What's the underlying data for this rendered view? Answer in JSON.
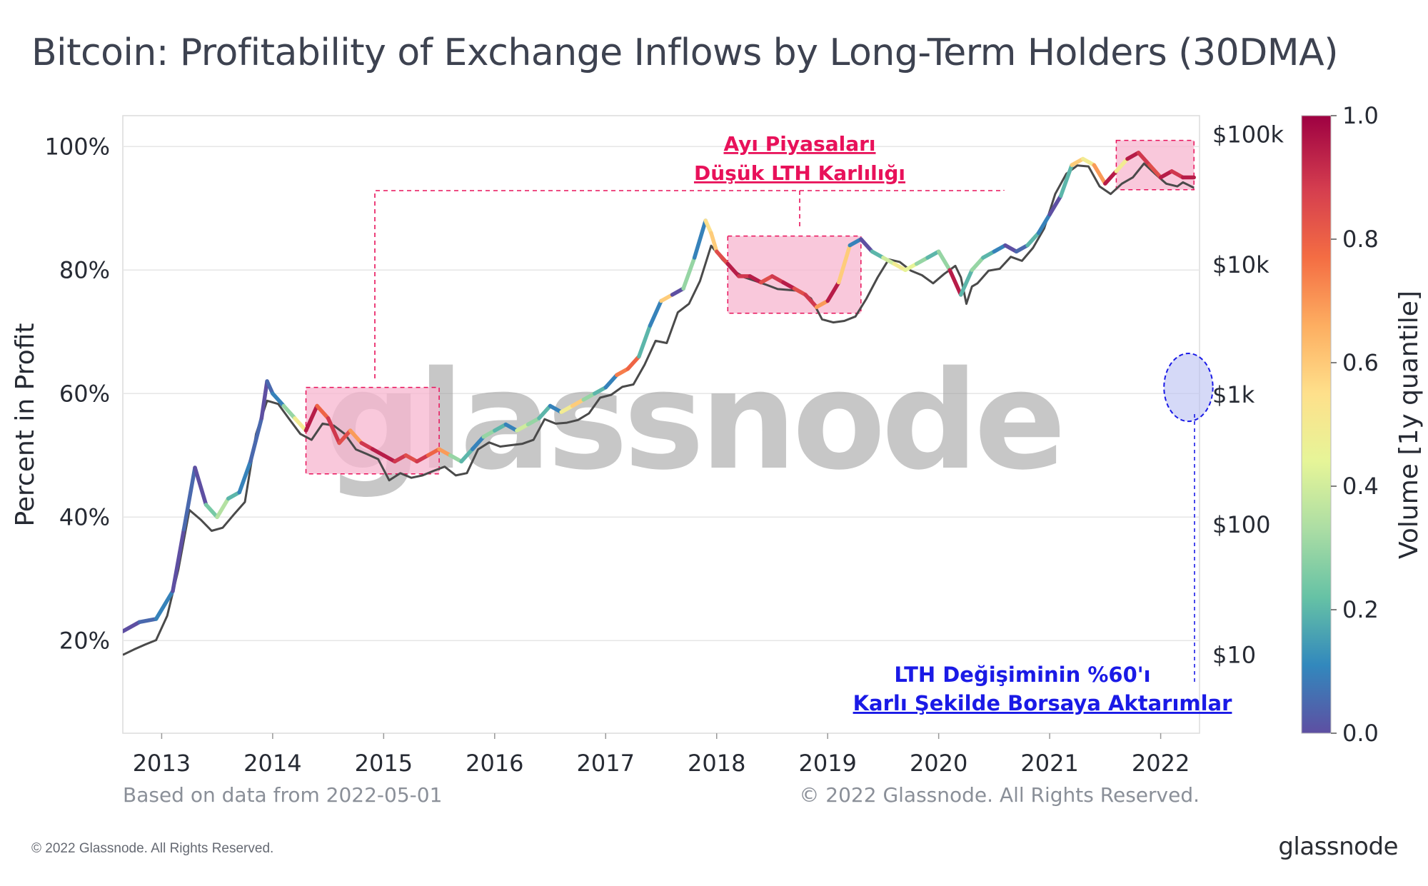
{
  "title": "Bitcoin: Profitability of Exchange Inflows by Long-Term Holders (30DMA)",
  "footer": {
    "based_on": "Based on data from 2022-05-01",
    "copyright_inner": "© 2022 Glassnode. All Rights Reserved.",
    "copyright_page": "© 2022 Glassnode. All Rights Reserved.",
    "brand": "glassnode"
  },
  "watermark": "glassnode",
  "annotations": {
    "bear_line1": "Ayı Piyasaları",
    "bear_line2": "Düşük LTH Karlılığı",
    "lth_line1": "LTH Değişiminin %60'ı",
    "lth_line2": "Karlı Şekilde Borsaya Aktarımlar"
  },
  "colors": {
    "price_line": "#4a4a4a",
    "highlight_fill": "#f7b6cf",
    "highlight_stroke": "#e8115a",
    "circle_fill": "#b9bff2",
    "circle_stroke": "#1a1ae6",
    "colorbar": [
      "#5e4fa2",
      "#3288bd",
      "#66c2a5",
      "#abdda4",
      "#e6f598",
      "#fee08b",
      "#fdae61",
      "#f46d43",
      "#d53e4f",
      "#9e0142"
    ]
  },
  "chart_data": {
    "type": "line",
    "ylabel": "Percent in Profit",
    "y2label": "",
    "colorbar_label": "Volume [1y quantile]",
    "x_ticks": [
      "2013",
      "2014",
      "2015",
      "2016",
      "2017",
      "2018",
      "2019",
      "2020",
      "2021",
      "2022"
    ],
    "y_ticks": [
      "20%",
      "40%",
      "60%",
      "80%",
      "100%"
    ],
    "y_tick_values": [
      20,
      40,
      60,
      80,
      100
    ],
    "y2_ticks": [
      "$10",
      "$100",
      "$1k",
      "$10k",
      "$100k"
    ],
    "y2_tick_values": [
      10,
      100,
      1000,
      10000,
      100000
    ],
    "colorbar_ticks": [
      "0.0",
      "0.2",
      "0.4",
      "0.6",
      "0.8",
      "1.0"
    ],
    "colorbar_tick_values": [
      0.0,
      0.2,
      0.4,
      0.6,
      0.8,
      1.0
    ],
    "xlim": [
      2012.65,
      2022.35
    ],
    "ylim": [
      5,
      105
    ],
    "y2lim": [
      2.5,
      140000
    ],
    "grid": true,
    "series": [
      {
        "kind": "percent_in_profit",
        "x": [
          2012.65,
          2012.8,
          2012.95,
          2013.1,
          2013.2,
          2013.3,
          2013.4,
          2013.5,
          2013.6,
          2013.7,
          2013.8,
          2013.9,
          2013.95,
          2014.0,
          2014.1,
          2014.2,
          2014.3,
          2014.4,
          2014.5,
          2014.6,
          2014.7,
          2014.8,
          2014.9,
          2015.0,
          2015.1,
          2015.2,
          2015.3,
          2015.4,
          2015.5,
          2015.6,
          2015.7,
          2015.8,
          2015.9,
          2016.0,
          2016.1,
          2016.2,
          2016.3,
          2016.4,
          2016.5,
          2016.6,
          2016.7,
          2016.8,
          2016.9,
          2017.0,
          2017.1,
          2017.2,
          2017.3,
          2017.4,
          2017.5,
          2017.6,
          2017.7,
          2017.8,
          2017.9,
          2017.95,
          2018.0,
          2018.1,
          2018.2,
          2018.3,
          2018.4,
          2018.5,
          2018.6,
          2018.7,
          2018.8,
          2018.9,
          2019.0,
          2019.1,
          2019.2,
          2019.3,
          2019.4,
          2019.5,
          2019.6,
          2019.7,
          2019.8,
          2019.9,
          2020.0,
          2020.1,
          2020.2,
          2020.3,
          2020.4,
          2020.5,
          2020.6,
          2020.7,
          2020.8,
          2020.9,
          2021.0,
          2021.1,
          2021.2,
          2021.3,
          2021.4,
          2021.5,
          2021.6,
          2021.7,
          2021.8,
          2021.9,
          2022.0,
          2022.1,
          2022.2,
          2022.3
        ],
        "y": [
          21.5,
          23,
          23.5,
          28,
          38,
          48,
          42,
          40,
          43,
          44,
          49,
          56,
          62,
          60,
          58,
          56,
          54,
          58,
          56,
          52,
          54,
          52,
          51,
          50,
          49,
          50,
          49,
          50,
          51,
          50,
          49,
          51,
          53,
          54,
          55,
          54,
          55,
          56,
          58,
          57,
          58,
          59,
          60,
          61,
          63,
          64,
          66,
          71,
          75,
          76,
          77,
          82,
          88,
          86,
          83,
          81,
          79,
          79,
          78,
          79,
          78,
          77,
          76,
          74,
          75,
          78,
          84,
          85,
          83,
          82,
          81,
          80,
          81,
          82,
          83,
          80,
          76,
          80,
          82,
          83,
          84,
          83,
          84,
          86,
          89,
          92,
          97,
          98,
          97,
          94,
          96,
          98,
          99,
          97,
          95,
          96,
          95,
          95
        ],
        "volume_quantile": [
          0.0,
          0.05,
          0.1,
          0.0,
          0.05,
          0.0,
          0.25,
          0.35,
          0.2,
          0.1,
          0.05,
          0.0,
          0.05,
          0.1,
          0.3,
          0.5,
          0.95,
          0.8,
          0.9,
          0.85,
          0.7,
          0.9,
          0.95,
          0.95,
          0.9,
          0.85,
          0.9,
          0.8,
          0.7,
          0.3,
          0.2,
          0.1,
          0.3,
          0.2,
          0.1,
          0.4,
          0.3,
          0.2,
          0.1,
          0.5,
          0.6,
          0.3,
          0.2,
          0.1,
          0.75,
          0.8,
          0.2,
          0.1,
          0.6,
          0.0,
          0.3,
          0.1,
          0.55,
          0.6,
          0.85,
          0.95,
          0.9,
          0.95,
          0.85,
          0.9,
          0.95,
          0.85,
          0.9,
          0.7,
          0.95,
          0.6,
          0.1,
          0.0,
          0.2,
          0.4,
          0.5,
          0.45,
          0.3,
          0.2,
          0.3,
          0.95,
          0.2,
          0.3,
          0.2,
          0.1,
          0.0,
          0.05,
          0.2,
          0.1,
          0.0,
          0.2,
          0.6,
          0.5,
          0.7,
          0.95,
          0.5,
          0.95,
          0.9,
          0.85,
          0.95,
          0.9,
          0.95,
          0.9
        ]
      },
      {
        "kind": "price_usd",
        "x": [
          2012.65,
          2012.75,
          2012.85,
          2012.95,
          2013.05,
          2013.15,
          2013.25,
          2013.35,
          2013.45,
          2013.55,
          2013.65,
          2013.75,
          2013.85,
          2013.95,
          2014.05,
          2014.15,
          2014.25,
          2014.35,
          2014.45,
          2014.55,
          2014.65,
          2014.75,
          2014.85,
          2014.95,
          2015.05,
          2015.15,
          2015.25,
          2015.35,
          2015.45,
          2015.55,
          2015.65,
          2015.75,
          2015.85,
          2015.95,
          2016.05,
          2016.15,
          2016.25,
          2016.35,
          2016.45,
          2016.55,
          2016.65,
          2016.75,
          2016.85,
          2016.95,
          2017.05,
          2017.15,
          2017.25,
          2017.35,
          2017.45,
          2017.55,
          2017.65,
          2017.75,
          2017.85,
          2017.95,
          2018.05,
          2018.15,
          2018.25,
          2018.35,
          2018.45,
          2018.55,
          2018.65,
          2018.75,
          2018.85,
          2018.95,
          2019.05,
          2019.15,
          2019.25,
          2019.35,
          2019.45,
          2019.55,
          2019.65,
          2019.75,
          2019.85,
          2019.95,
          2020.05,
          2020.15,
          2020.2,
          2020.25,
          2020.3,
          2020.35,
          2020.45,
          2020.55,
          2020.65,
          2020.75,
          2020.85,
          2020.95,
          2021.05,
          2021.15,
          2021.25,
          2021.35,
          2021.45,
          2021.55,
          2021.65,
          2021.75,
          2021.85,
          2021.95,
          2022.05,
          2022.15,
          2022.2,
          2022.25,
          2022.3
        ],
        "y": [
          10,
          11,
          12,
          13,
          20,
          45,
          130,
          110,
          90,
          95,
          120,
          150,
          500,
          900,
          850,
          650,
          500,
          450,
          600,
          580,
          500,
          380,
          350,
          320,
          220,
          250,
          230,
          240,
          260,
          280,
          240,
          250,
          380,
          430,
          400,
          410,
          420,
          450,
          650,
          600,
          610,
          640,
          720,
          950,
          1000,
          1150,
          1200,
          1700,
          2600,
          2500,
          4300,
          5000,
          7500,
          14000,
          11000,
          9000,
          8000,
          7500,
          7000,
          6500,
          6400,
          6300,
          5500,
          3800,
          3600,
          3700,
          4000,
          5500,
          8000,
          11000,
          10500,
          9000,
          8300,
          7200,
          8500,
          9800,
          8000,
          5000,
          6800,
          7200,
          9000,
          9300,
          11500,
          10700,
          13500,
          19000,
          35000,
          50000,
          58000,
          57000,
          40000,
          35000,
          42000,
          47000,
          60000,
          50000,
          42000,
          40000,
          43000,
          41000,
          39000
        ]
      }
    ],
    "highlight_regions": [
      {
        "x": [
          2014.3,
          2015.5
        ],
        "y": [
          47,
          61
        ]
      },
      {
        "x": [
          2018.1,
          2019.3
        ],
        "y": [
          73,
          85.5
        ]
      },
      {
        "x": [
          2021.6,
          2022.3
        ],
        "y": [
          93,
          101
        ]
      }
    ],
    "highlight_circle": {
      "x": 2022.25,
      "y": 61,
      "rx_years": 0.22,
      "ry_pct": 5.5
    }
  }
}
